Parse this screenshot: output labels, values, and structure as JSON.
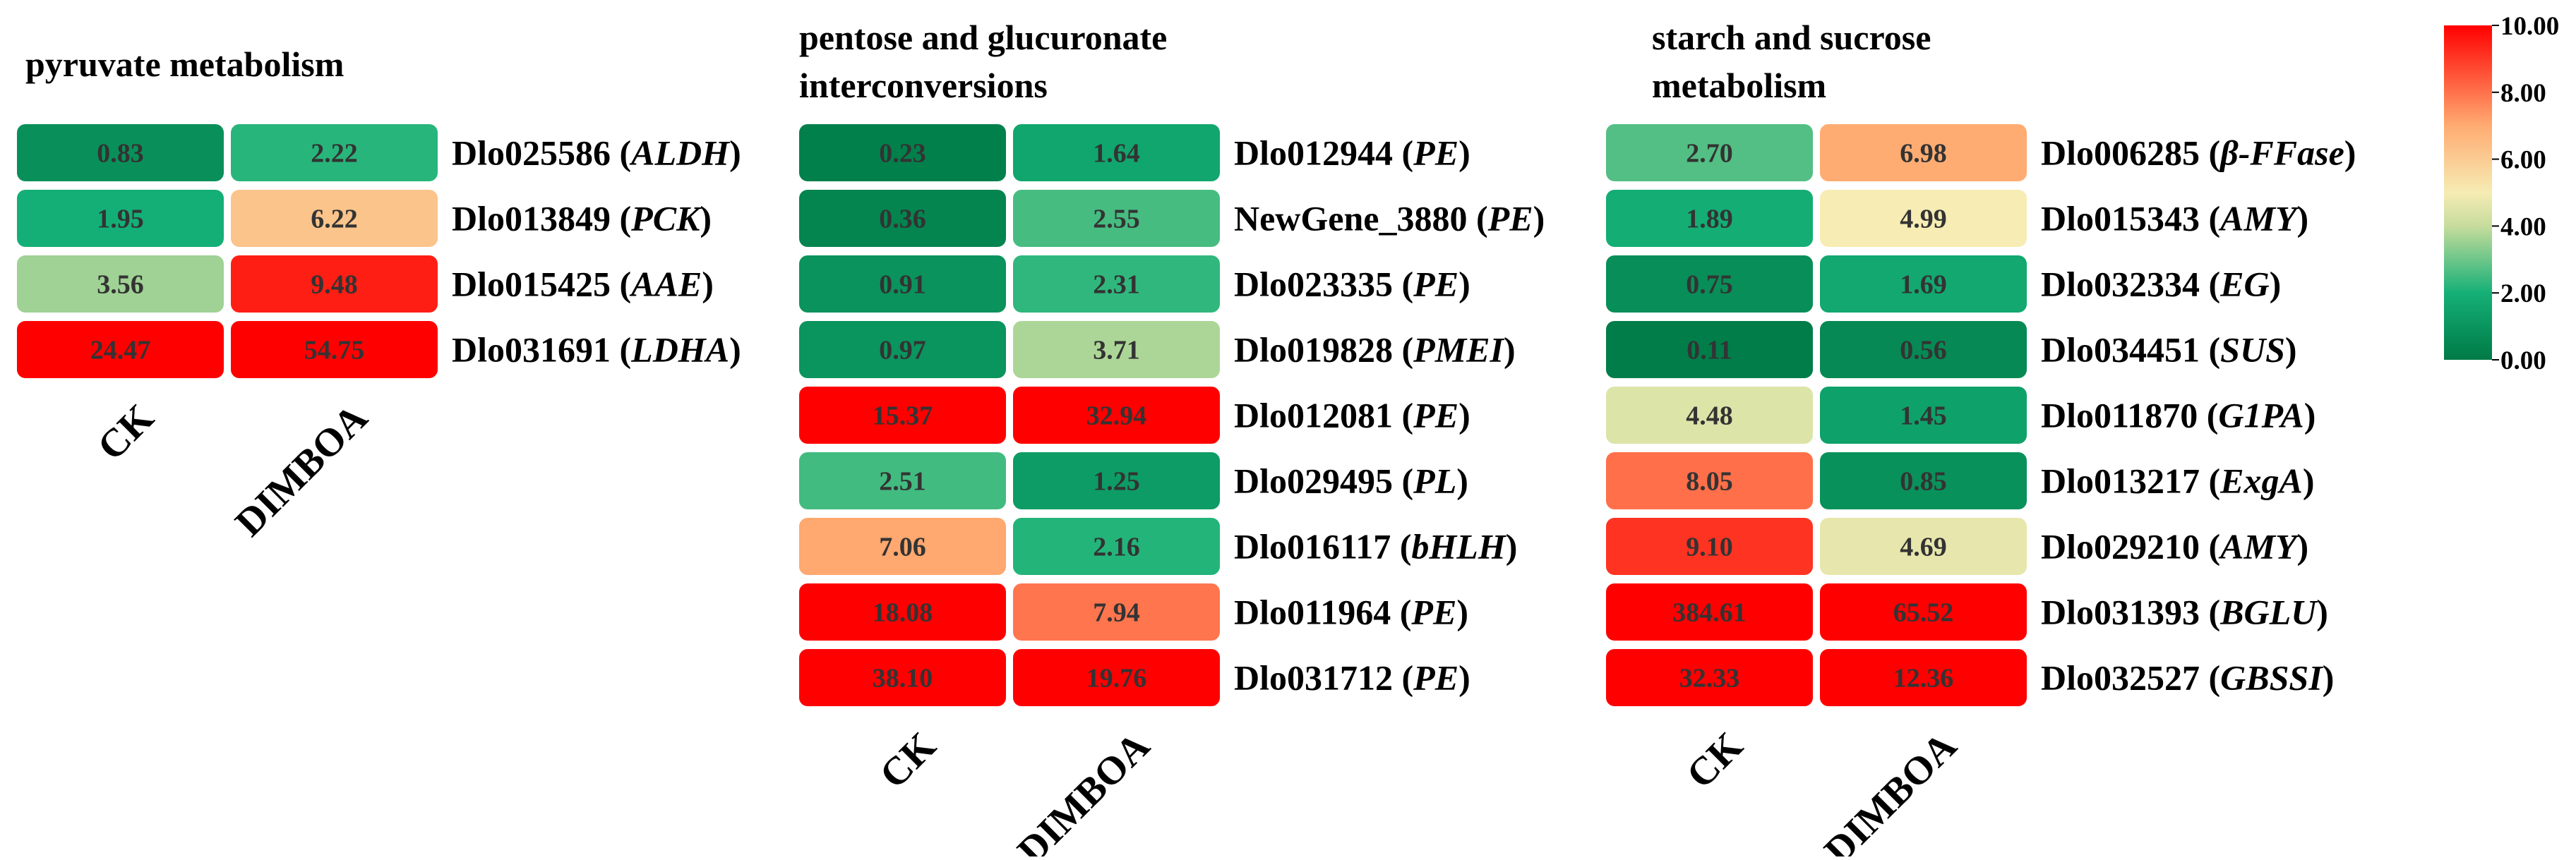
{
  "chart_data": [
    {
      "type": "heatmap",
      "title": "pyruvate metabolism",
      "columns": [
        "CK",
        "DIMBOA"
      ],
      "rows": [
        {
          "gene": "Dlo025586",
          "name": "ALDH",
          "values": [
            0.83,
            2.22
          ],
          "labels": [
            "0.83",
            "2.22"
          ]
        },
        {
          "gene": "Dlo013849",
          "name": "PCK",
          "values": [
            1.95,
            6.22
          ],
          "labels": [
            "1.95",
            "6.22"
          ]
        },
        {
          "gene": "Dlo015425",
          "name": "AAE",
          "values": [
            3.56,
            9.48
          ],
          "labels": [
            "3.56",
            "9.48"
          ]
        },
        {
          "gene": "Dlo031691",
          "name": "LDHA",
          "values": [
            24.47,
            54.75
          ],
          "labels": [
            "24.47",
            "54.75"
          ]
        }
      ]
    },
    {
      "type": "heatmap",
      "title": "pentose and glucuronate interconversions",
      "title_lines": [
        "pentose and glucuronate",
        "interconversions"
      ],
      "columns": [
        "CK",
        "DIMBOA"
      ],
      "rows": [
        {
          "gene": "Dlo012944",
          "name": "PE",
          "values": [
            0.23,
            1.64
          ],
          "labels": [
            "0.23",
            "1.64"
          ]
        },
        {
          "gene": "NewGene_3880",
          "name": "PE",
          "values": [
            0.36,
            2.55
          ],
          "labels": [
            "0.36",
            "2.55"
          ]
        },
        {
          "gene": "Dlo023335",
          "name": "PE",
          "values": [
            0.91,
            2.31
          ],
          "labels": [
            "0.91",
            "2.31"
          ]
        },
        {
          "gene": "Dlo019828",
          "name": "PMEI",
          "values": [
            0.97,
            3.71
          ],
          "labels": [
            "0.97",
            "3.71"
          ]
        },
        {
          "gene": "Dlo012081",
          "name": "PE",
          "values": [
            15.37,
            32.94
          ],
          "labels": [
            "15.37",
            "32.94"
          ]
        },
        {
          "gene": "Dlo029495",
          "name": "PL",
          "values": [
            2.51,
            1.25
          ],
          "labels": [
            "2.51",
            "1.25"
          ]
        },
        {
          "gene": "Dlo016117",
          "name": "bHLH",
          "values": [
            7.06,
            2.16
          ],
          "labels": [
            "7.06",
            "2.16"
          ]
        },
        {
          "gene": "Dlo011964",
          "name": "PE",
          "values": [
            18.08,
            7.94
          ],
          "labels": [
            "18.08",
            "7.94"
          ]
        },
        {
          "gene": "Dlo031712",
          "name": "PE",
          "values": [
            38.1,
            19.76
          ],
          "labels": [
            "38.10",
            "19.76"
          ]
        }
      ]
    },
    {
      "type": "heatmap",
      "title": "starch and sucrose metabolism",
      "title_lines": [
        "starch and sucrose",
        "metabolism"
      ],
      "columns": [
        "CK",
        "DIMBOA"
      ],
      "rows": [
        {
          "gene": "Dlo006285",
          "name": "β-FFase",
          "values": [
            2.7,
            6.98
          ],
          "labels": [
            "2.70",
            "6.98"
          ]
        },
        {
          "gene": "Dlo015343",
          "name": "AMY",
          "values": [
            1.89,
            4.99
          ],
          "labels": [
            "1.89",
            "4.99"
          ]
        },
        {
          "gene": "Dlo032334",
          "name": "EG",
          "values": [
            0.75,
            1.69
          ],
          "labels": [
            "0.75",
            "1.69"
          ]
        },
        {
          "gene": "Dlo034451",
          "name": "SUS",
          "values": [
            0.11,
            0.56
          ],
          "labels": [
            "0.11",
            "0.56"
          ]
        },
        {
          "gene": "Dlo011870",
          "name": "G1PA",
          "values": [
            4.48,
            1.45
          ],
          "labels": [
            "4.48",
            "1.45"
          ]
        },
        {
          "gene": "Dlo013217",
          "name": "ExgA",
          "values": [
            8.05,
            0.85
          ],
          "labels": [
            "8.05",
            "0.85"
          ]
        },
        {
          "gene": "Dlo029210",
          "name": "AMY",
          "values": [
            9.1,
            4.69
          ],
          "labels": [
            "9.10",
            "4.69"
          ]
        },
        {
          "gene": "Dlo031393",
          "name": "BGLU",
          "values": [
            384.61,
            65.52
          ],
          "labels": [
            "384.61",
            "65.52"
          ]
        },
        {
          "gene": "Dlo032527",
          "name": "GBSSI",
          "values": [
            32.33,
            12.36
          ],
          "labels": [
            "32.33",
            "12.36"
          ]
        }
      ]
    }
  ],
  "colorbar": {
    "ticks": [
      0,
      2,
      4,
      6,
      8,
      10
    ],
    "tick_labels": [
      "0.00",
      "2.00",
      "4.00",
      "6.00",
      "8.00",
      "10.00"
    ],
    "range": [
      0,
      10
    ],
    "stops": [
      {
        "value": 0,
        "color": "#007a46"
      },
      {
        "value": 2,
        "color": "#15b077"
      },
      {
        "value": 4,
        "color": "#c6dc9c"
      },
      {
        "value": 5,
        "color": "#f6ecb4"
      },
      {
        "value": 7,
        "color": "#ffab71"
      },
      {
        "value": 10,
        "color": "#ff0000"
      }
    ]
  }
}
